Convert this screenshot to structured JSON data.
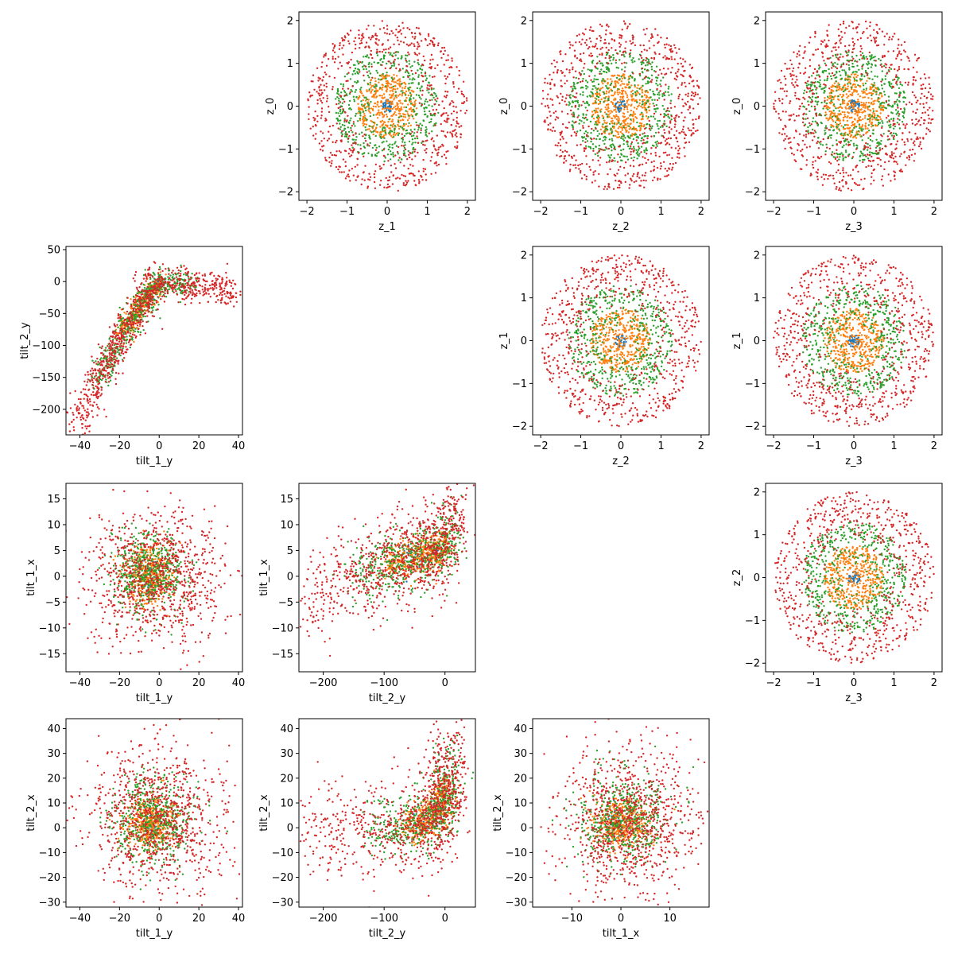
{
  "figure": {
    "background": "#ffffff"
  },
  "legend": {
    "shown": false
  },
  "series_colors": [
    "#1f77b4",
    "#ff7f0e",
    "#2ca02c",
    "#d62728"
  ],
  "chart_data": [
    {
      "type": "scatter",
      "position": "row-1-col-2",
      "xlabel": "z_1",
      "ylabel": "z_0",
      "xlim": [
        -2.2,
        2.2
      ],
      "ylim": [
        -2.2,
        2.2
      ],
      "xticks": [
        -2,
        -1,
        0,
        1,
        2
      ],
      "yticks": [
        -2,
        -1,
        0,
        1,
        2
      ],
      "grid": false,
      "shape": "radial-rings",
      "series": [
        {
          "color": "#1f77b4",
          "center": [
            0,
            0
          ],
          "r_min": 0.0,
          "r_max": 0.15,
          "count": 40
        },
        {
          "color": "#ff7f0e",
          "center": [
            0,
            0
          ],
          "r_min": 0.0,
          "r_max": 0.75,
          "count": 420
        },
        {
          "color": "#2ca02c",
          "center": [
            0,
            0
          ],
          "r_min": 0.3,
          "r_max": 1.3,
          "count": 520
        },
        {
          "color": "#d62728",
          "center": [
            0,
            0
          ],
          "r_min": 0.7,
          "r_max": 2.0,
          "count": 700
        }
      ]
    },
    {
      "type": "scatter",
      "position": "row-1-col-3",
      "xlabel": "z_2",
      "ylabel": "z_0",
      "xlim": [
        -2.2,
        2.2
      ],
      "ylim": [
        -2.2,
        2.2
      ],
      "xticks": [
        -2,
        -1,
        0,
        1,
        2
      ],
      "yticks": [
        -2,
        -1,
        0,
        1,
        2
      ],
      "grid": false,
      "shape": "radial-rings",
      "series": [
        {
          "color": "#1f77b4",
          "center": [
            0,
            0
          ],
          "r_min": 0.0,
          "r_max": 0.15,
          "count": 40
        },
        {
          "color": "#ff7f0e",
          "center": [
            0,
            0
          ],
          "r_min": 0.0,
          "r_max": 0.75,
          "count": 420
        },
        {
          "color": "#2ca02c",
          "center": [
            0,
            0
          ],
          "r_min": 0.3,
          "r_max": 1.3,
          "count": 520
        },
        {
          "color": "#d62728",
          "center": [
            0,
            0
          ],
          "r_min": 0.7,
          "r_max": 2.0,
          "count": 700
        }
      ]
    },
    {
      "type": "scatter",
      "position": "row-1-col-4",
      "xlabel": "z_3",
      "ylabel": "z_0",
      "xlim": [
        -2.2,
        2.2
      ],
      "ylim": [
        -2.2,
        2.2
      ],
      "xticks": [
        -2,
        -1,
        0,
        1,
        2
      ],
      "yticks": [
        -2,
        -1,
        0,
        1,
        2
      ],
      "grid": false,
      "shape": "radial-rings",
      "series": [
        {
          "color": "#1f77b4",
          "center": [
            0,
            0
          ],
          "r_min": 0.0,
          "r_max": 0.15,
          "count": 40
        },
        {
          "color": "#ff7f0e",
          "center": [
            0,
            0
          ],
          "r_min": 0.0,
          "r_max": 0.75,
          "count": 420
        },
        {
          "color": "#2ca02c",
          "center": [
            0,
            0
          ],
          "r_min": 0.3,
          "r_max": 1.3,
          "count": 520
        },
        {
          "color": "#d62728",
          "center": [
            0,
            0
          ],
          "r_min": 0.7,
          "r_max": 2.0,
          "count": 700
        }
      ]
    },
    {
      "type": "scatter",
      "position": "row-2-col-1",
      "xlabel": "tilt_1_y",
      "ylabel": "tilt_2_y",
      "xlim": [
        -47,
        42
      ],
      "ylim": [
        -240,
        55
      ],
      "xticks": [
        -40,
        -20,
        0,
        20,
        40
      ],
      "yticks": [
        -200,
        -150,
        -100,
        -50,
        0,
        50
      ],
      "grid": false,
      "shape": "path-band",
      "path": [
        [
          -43,
          -230
        ],
        [
          -30,
          -150
        ],
        [
          -20,
          -90
        ],
        [
          -10,
          -40
        ],
        [
          0,
          0
        ],
        [
          20,
          -5
        ],
        [
          38,
          -15
        ]
      ],
      "series": [
        {
          "color": "#1f77b4",
          "t_range": [
            0.55,
            0.68
          ],
          "spread": [
            3,
            10
          ],
          "count": 40
        },
        {
          "color": "#ff7f0e",
          "t_range": [
            0.35,
            0.68
          ],
          "spread": [
            4,
            15
          ],
          "count": 300
        },
        {
          "color": "#2ca02c",
          "t_range": [
            0.15,
            0.8
          ],
          "spread": [
            5,
            18
          ],
          "count": 500
        },
        {
          "color": "#d62728",
          "t_range": [
            0.0,
            1.0
          ],
          "spread": [
            6,
            22
          ],
          "count": 900
        }
      ]
    },
    {
      "type": "scatter",
      "position": "row-2-col-3",
      "xlabel": "z_2",
      "ylabel": "z_1",
      "xlim": [
        -2.2,
        2.2
      ],
      "ylim": [
        -2.2,
        2.2
      ],
      "xticks": [
        -2,
        -1,
        0,
        1,
        2
      ],
      "yticks": [
        -2,
        -1,
        0,
        1,
        2
      ],
      "grid": false,
      "shape": "radial-rings",
      "series": [
        {
          "color": "#1f77b4",
          "center": [
            0,
            0
          ],
          "r_min": 0.0,
          "r_max": 0.15,
          "count": 40
        },
        {
          "color": "#ff7f0e",
          "center": [
            0,
            0
          ],
          "r_min": 0.0,
          "r_max": 0.75,
          "count": 420
        },
        {
          "color": "#2ca02c",
          "center": [
            0,
            0
          ],
          "r_min": 0.3,
          "r_max": 1.3,
          "count": 520
        },
        {
          "color": "#d62728",
          "center": [
            0,
            0
          ],
          "r_min": 0.7,
          "r_max": 2.0,
          "count": 700
        }
      ]
    },
    {
      "type": "scatter",
      "position": "row-2-col-4",
      "xlabel": "z_3",
      "ylabel": "z_1",
      "xlim": [
        -2.2,
        2.2
      ],
      "ylim": [
        -2.2,
        2.2
      ],
      "xticks": [
        -2,
        -1,
        0,
        1,
        2
      ],
      "yticks": [
        -2,
        -1,
        0,
        1,
        2
      ],
      "grid": false,
      "shape": "radial-rings",
      "series": [
        {
          "color": "#1f77b4",
          "center": [
            0,
            0
          ],
          "r_min": 0.0,
          "r_max": 0.15,
          "count": 40
        },
        {
          "color": "#ff7f0e",
          "center": [
            0,
            0
          ],
          "r_min": 0.0,
          "r_max": 0.75,
          "count": 420
        },
        {
          "color": "#2ca02c",
          "center": [
            0,
            0
          ],
          "r_min": 0.3,
          "r_max": 1.3,
          "count": 520
        },
        {
          "color": "#d62728",
          "center": [
            0,
            0
          ],
          "r_min": 0.7,
          "r_max": 2.0,
          "count": 700
        }
      ]
    },
    {
      "type": "scatter",
      "position": "row-3-col-1",
      "xlabel": "tilt_1_y",
      "ylabel": "tilt_1_x",
      "xlim": [
        -47,
        42
      ],
      "ylim": [
        -18.5,
        18
      ],
      "xticks": [
        -40,
        -20,
        0,
        20,
        40
      ],
      "yticks": [
        -15,
        -10,
        -5,
        0,
        5,
        10,
        15
      ],
      "grid": false,
      "shape": "gaussian-clouds",
      "series": [
        {
          "color": "#1f77b4",
          "mean": [
            -5,
            0
          ],
          "std": [
            3,
            2
          ],
          "count": 40
        },
        {
          "color": "#ff7f0e",
          "mean": [
            -5,
            0
          ],
          "std": [
            6,
            3
          ],
          "count": 400
        },
        {
          "color": "#2ca02c",
          "mean": [
            -5,
            1
          ],
          "std": [
            10,
            4
          ],
          "count": 500
        },
        {
          "color": "#d62728",
          "mean": [
            -2,
            0
          ],
          "std": [
            17,
            6.5
          ],
          "count": 900
        }
      ]
    },
    {
      "type": "scatter",
      "position": "row-3-col-2",
      "xlabel": "tilt_2_y",
      "ylabel": "tilt_1_x",
      "xlim": [
        -240,
        50
      ],
      "ylim": [
        -18.5,
        18
      ],
      "xticks": [
        -200,
        -100,
        0
      ],
      "yticks": [
        -15,
        -10,
        -5,
        0,
        5,
        10,
        15
      ],
      "grid": false,
      "shape": "path-band",
      "path": [
        [
          -230,
          -4
        ],
        [
          -150,
          0
        ],
        [
          -80,
          3
        ],
        [
          -30,
          4
        ],
        [
          0,
          6
        ],
        [
          20,
          12
        ]
      ],
      "series": [
        {
          "color": "#1f77b4",
          "t_range": [
            0.45,
            0.75
          ],
          "spread": [
            8,
            2
          ],
          "count": 40
        },
        {
          "color": "#ff7f0e",
          "t_range": [
            0.35,
            0.8
          ],
          "spread": [
            15,
            3
          ],
          "count": 400
        },
        {
          "color": "#2ca02c",
          "t_range": [
            0.2,
            0.95
          ],
          "spread": [
            20,
            5
          ],
          "count": 500
        },
        {
          "color": "#d62728",
          "t_range": [
            0.0,
            1.0
          ],
          "spread": [
            25,
            8
          ],
          "count": 900
        }
      ]
    },
    {
      "type": "scatter",
      "position": "row-3-col-4",
      "xlabel": "z_3",
      "ylabel": "z_2",
      "xlim": [
        -2.2,
        2.2
      ],
      "ylim": [
        -2.2,
        2.2
      ],
      "xticks": [
        -2,
        -1,
        0,
        1,
        2
      ],
      "yticks": [
        -2,
        -1,
        0,
        1,
        2
      ],
      "grid": false,
      "shape": "radial-rings",
      "series": [
        {
          "color": "#1f77b4",
          "center": [
            0,
            0
          ],
          "r_min": 0.0,
          "r_max": 0.15,
          "count": 40
        },
        {
          "color": "#ff7f0e",
          "center": [
            0,
            0
          ],
          "r_min": 0.0,
          "r_max": 0.75,
          "count": 420
        },
        {
          "color": "#2ca02c",
          "center": [
            0,
            0
          ],
          "r_min": 0.3,
          "r_max": 1.3,
          "count": 520
        },
        {
          "color": "#d62728",
          "center": [
            0,
            0
          ],
          "r_min": 0.7,
          "r_max": 2.0,
          "count": 700
        }
      ]
    },
    {
      "type": "scatter",
      "position": "row-4-col-1",
      "xlabel": "tilt_1_y",
      "ylabel": "tilt_2_x",
      "xlim": [
        -47,
        42
      ],
      "ylim": [
        -32,
        44
      ],
      "xticks": [
        -40,
        -20,
        0,
        20,
        40
      ],
      "yticks": [
        -30,
        -20,
        -10,
        0,
        10,
        20,
        30,
        40
      ],
      "grid": false,
      "shape": "gaussian-clouds",
      "series": [
        {
          "color": "#1f77b4",
          "mean": [
            -3,
            2
          ],
          "std": [
            3,
            3
          ],
          "count": 40
        },
        {
          "color": "#ff7f0e",
          "mean": [
            -5,
            2
          ],
          "std": [
            6,
            5
          ],
          "count": 400
        },
        {
          "color": "#2ca02c",
          "mean": [
            -4,
            3
          ],
          "std": [
            10,
            9
          ],
          "count": 500
        },
        {
          "color": "#d62728",
          "mean": [
            -1,
            3
          ],
          "std": [
            17,
            15
          ],
          "count": 900
        }
      ]
    },
    {
      "type": "scatter",
      "position": "row-4-col-2",
      "xlabel": "tilt_2_y",
      "ylabel": "tilt_2_x",
      "xlim": [
        -240,
        50
      ],
      "ylim": [
        -32,
        44
      ],
      "xticks": [
        -200,
        -100,
        0
      ],
      "yticks": [
        -30,
        -20,
        -10,
        0,
        10,
        20,
        30,
        40
      ],
      "grid": false,
      "shape": "path-band",
      "path": [
        [
          -230,
          0
        ],
        [
          -120,
          0
        ],
        [
          -50,
          0
        ],
        [
          -10,
          5
        ],
        [
          0,
          15
        ],
        [
          10,
          30
        ]
      ],
      "series": [
        {
          "color": "#1f77b4",
          "t_range": [
            0.4,
            0.7
          ],
          "spread": [
            10,
            4
          ],
          "count": 40
        },
        {
          "color": "#ff7f0e",
          "t_range": [
            0.35,
            0.8
          ],
          "spread": [
            18,
            6
          ],
          "count": 400
        },
        {
          "color": "#2ca02c",
          "t_range": [
            0.2,
            0.95
          ],
          "spread": [
            22,
            10
          ],
          "count": 500
        },
        {
          "color": "#d62728",
          "t_range": [
            0.0,
            1.0
          ],
          "spread": [
            28,
            17
          ],
          "count": 900
        }
      ]
    },
    {
      "type": "scatter",
      "position": "row-4-col-3",
      "xlabel": "tilt_1_x",
      "ylabel": "tilt_2_x",
      "xlim": [
        -18,
        18
      ],
      "ylim": [
        -32,
        44
      ],
      "xticks": [
        -10,
        0,
        10
      ],
      "yticks": [
        -30,
        -20,
        -10,
        0,
        10,
        20,
        30,
        40
      ],
      "grid": false,
      "shape": "gaussian-clouds",
      "series": [
        {
          "color": "#1f77b4",
          "mean": [
            0,
            2
          ],
          "std": [
            1.5,
            3
          ],
          "count": 40
        },
        {
          "color": "#ff7f0e",
          "mean": [
            0,
            2
          ],
          "std": [
            3,
            5
          ],
          "count": 400
        },
        {
          "color": "#2ca02c",
          "mean": [
            0.5,
            3
          ],
          "std": [
            4.5,
            9
          ],
          "count": 500
        },
        {
          "color": "#d62728",
          "mean": [
            1.5,
            2
          ],
          "std": [
            7,
            15
          ],
          "count": 900
        }
      ]
    }
  ]
}
